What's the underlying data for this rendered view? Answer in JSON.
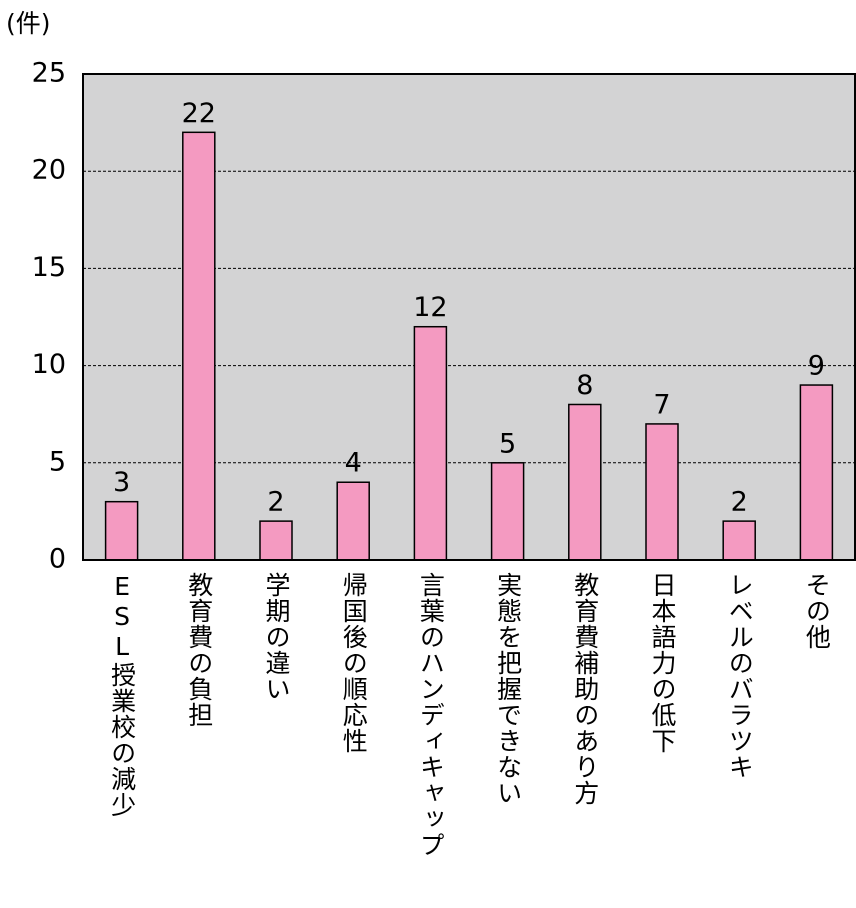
{
  "chart_data": {
    "type": "bar",
    "y_unit": "(件)",
    "categories": [
      "ESL授業校の減少",
      "教育費の負担",
      "学期の違い",
      "帰国後の順応性",
      "言葉のハンディキャップ",
      "実態を把握できない",
      "教育費補助のあり方",
      "日本語力の低下",
      "レベルのバラツキ",
      "その他"
    ],
    "values": [
      3,
      22,
      2,
      4,
      12,
      5,
      8,
      7,
      2,
      9
    ],
    "color": "#f49ac1",
    "ylim": [
      0,
      25
    ],
    "yticks": [
      0,
      5,
      10,
      15,
      20,
      25
    ],
    "grid": true
  }
}
